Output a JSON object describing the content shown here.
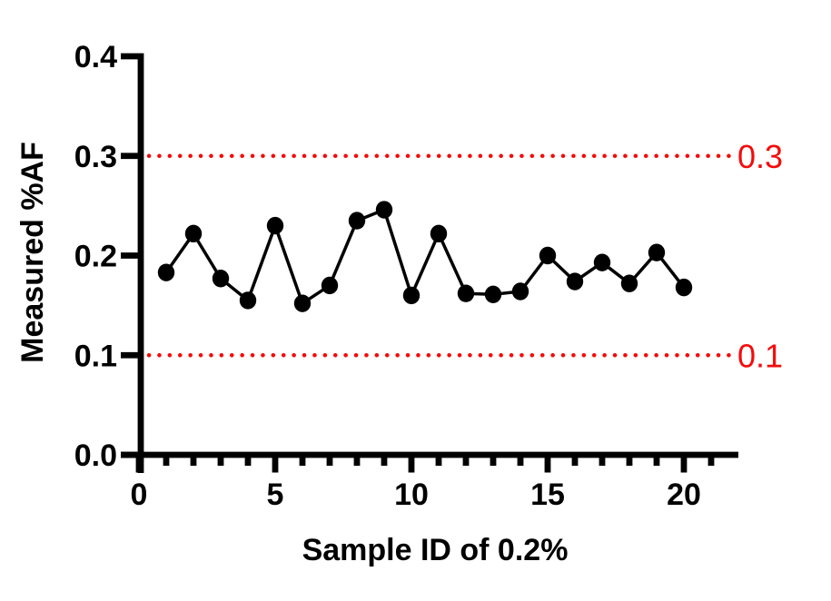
{
  "figure": {
    "background": "#ffffff",
    "series_color": "#000000",
    "reference_color": "#F40B0B"
  },
  "chart_data": {
    "type": "line",
    "title": "",
    "xlabel": "Sample ID of 0.2%",
    "ylabel": "Measured %AF",
    "x": [
      1,
      2,
      3,
      4,
      5,
      6,
      7,
      8,
      9,
      10,
      11,
      12,
      13,
      14,
      15,
      16,
      17,
      18,
      19,
      20
    ],
    "y": [
      0.183,
      0.222,
      0.177,
      0.155,
      0.23,
      0.152,
      0.17,
      0.235,
      0.246,
      0.16,
      0.222,
      0.162,
      0.161,
      0.164,
      0.2,
      0.174,
      0.193,
      0.172,
      0.203,
      0.168
    ],
    "xlim": [
      0,
      22
    ],
    "ylim": [
      0,
      0.4
    ],
    "x_major_ticks": [
      0,
      5,
      10,
      15,
      20
    ],
    "x_tick_labels": [
      "0",
      "5",
      "10",
      "15",
      "20"
    ],
    "x_minor_tick_step": 1,
    "y_ticks": [
      0.0,
      0.1,
      0.2,
      0.3,
      0.4
    ],
    "y_tick_labels": [
      "0.0",
      "0.1",
      "0.2",
      "0.3",
      "0.4"
    ],
    "marker": "filled-circle",
    "marker_color": "#000000",
    "line_color": "#000000",
    "grid": false,
    "legend": false,
    "reference_lines": [
      {
        "value": 0.3,
        "label": "0.3",
        "color": "#F40B0B",
        "style": "dotted"
      },
      {
        "value": 0.1,
        "label": "0.1",
        "color": "#F40B0B",
        "style": "dotted"
      }
    ]
  }
}
